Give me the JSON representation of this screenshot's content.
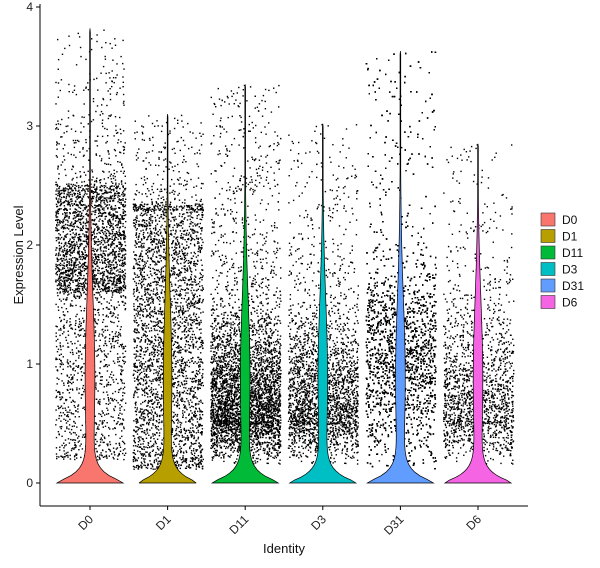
{
  "chart_data": {
    "type": "violin",
    "title": "",
    "xlabel": "Identity",
    "ylabel": "Expression Level",
    "ylim": [
      -0.2,
      4.0
    ],
    "yticks": [
      0,
      1,
      2,
      3,
      4
    ],
    "grid": false,
    "legend_position": "right",
    "categories": [
      "D0",
      "D1",
      "D11",
      "D3",
      "D31",
      "D6"
    ],
    "series": [
      {
        "name": "D0",
        "color": "#F8766D",
        "max": 3.82,
        "point_count": 3200,
        "violin_peak_width": 0.52,
        "dist": "bimodal_high"
      },
      {
        "name": "D1",
        "color": "#B79F00",
        "max": 3.1,
        "point_count": 3200,
        "violin_peak_width": 0.45,
        "dist": "uniform_mid"
      },
      {
        "name": "D11",
        "color": "#00BA38",
        "max": 3.35,
        "point_count": 4200,
        "violin_peak_width": 0.52,
        "dist": "low_heavy"
      },
      {
        "name": "D3",
        "color": "#00BFC4",
        "max": 3.02,
        "point_count": 2500,
        "violin_peak_width": 0.52,
        "dist": "low_heavy"
      },
      {
        "name": "D31",
        "color": "#619CFF",
        "max": 3.63,
        "point_count": 5200,
        "violin_peak_width": 0.52,
        "dist": "mid_heavy"
      },
      {
        "name": "D6",
        "color": "#F564E3",
        "max": 2.85,
        "point_count": 1700,
        "violin_peak_width": 0.52,
        "dist": "low_heavy"
      }
    ]
  }
}
